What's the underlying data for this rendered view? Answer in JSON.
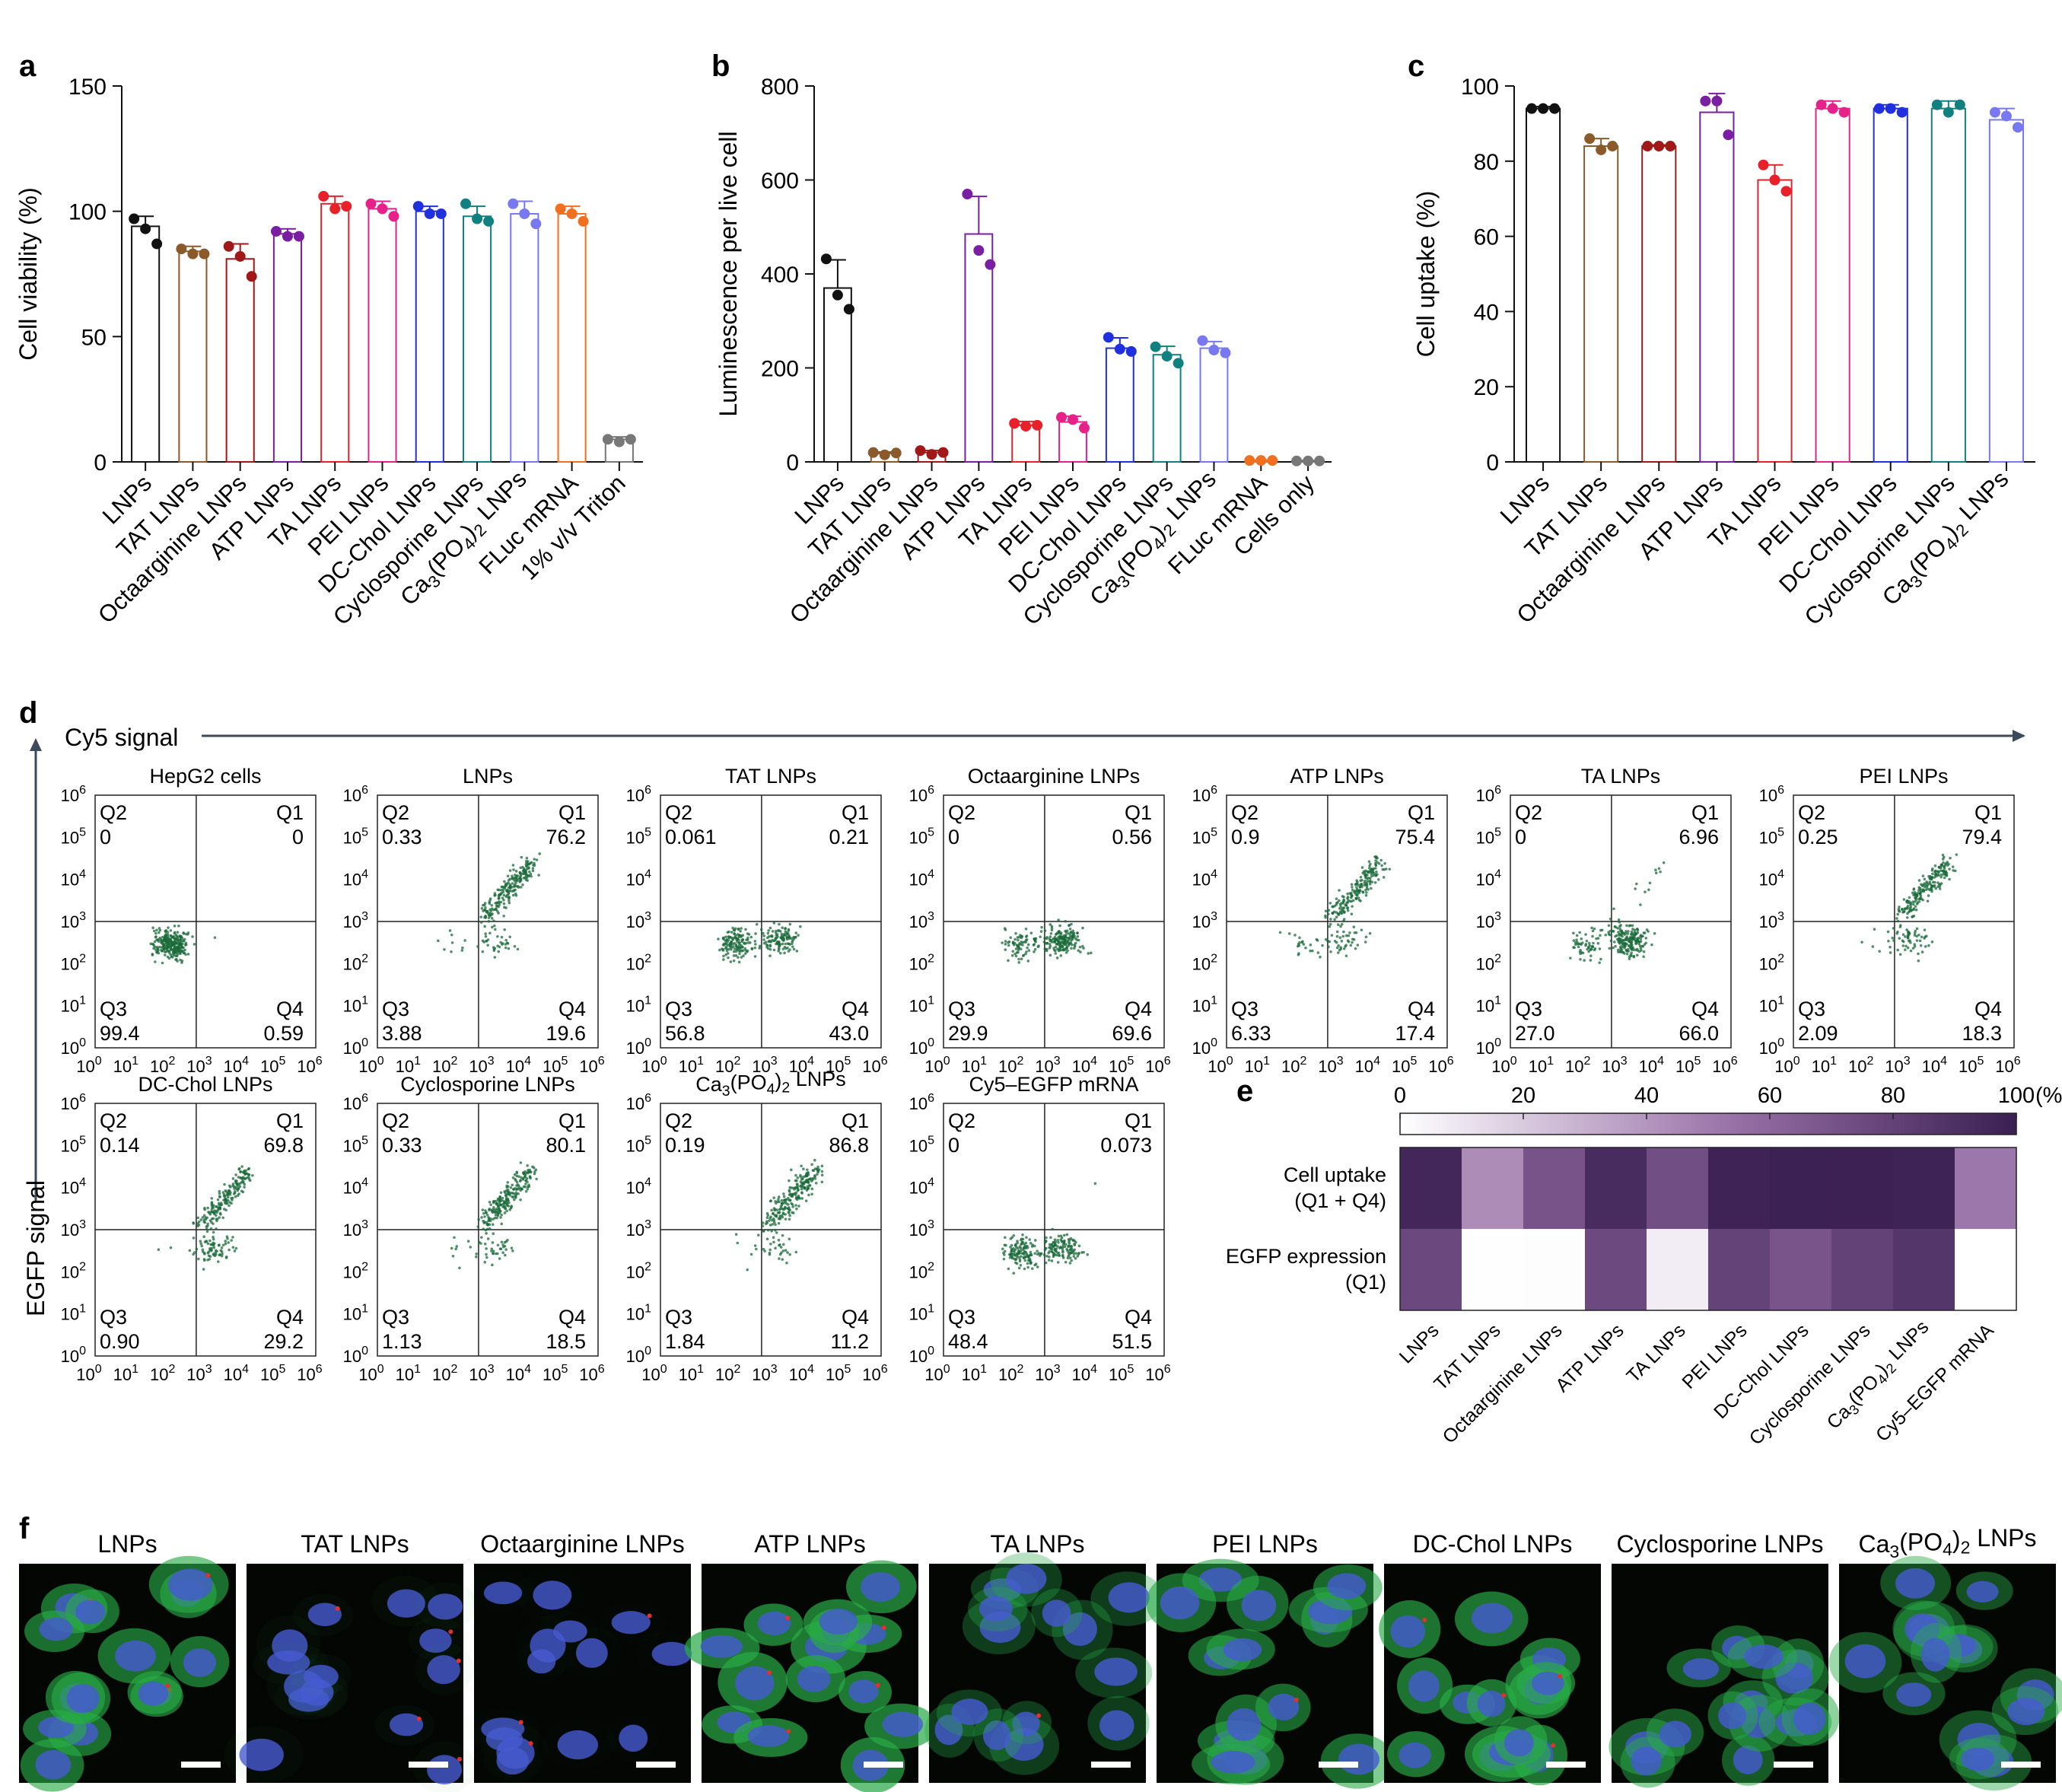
{
  "panel_labels": {
    "a": "a",
    "b": "b",
    "c": "c",
    "d": "d",
    "e": "e",
    "f": "f"
  },
  "chart_data": [
    {
      "panel": "a",
      "type": "bar",
      "ylabel": "Cell viability (%)",
      "ylim": [
        0,
        150
      ],
      "yticks": [
        "0",
        "50",
        "100",
        "150"
      ],
      "categories": [
        "LNPs",
        "TAT LNPs",
        "Octaarginine LNPs",
        "ATP LNPs",
        "TA LNPs",
        "PEI LNPs",
        "DC-Chol LNPs",
        "Cyclosporine LNPs",
        "Ca3(PO4)2 LNPs",
        "FLuc mRNA",
        "1% v/v Triton"
      ],
      "values": [
        94,
        84,
        81,
        91,
        103,
        101,
        100,
        98,
        99,
        99,
        9
      ],
      "errors": [
        4,
        2,
        6,
        2,
        3,
        3,
        2,
        4,
        5,
        3,
        1
      ],
      "points": [
        [
          97,
          93,
          87
        ],
        [
          85,
          83,
          83
        ],
        [
          86,
          82,
          74
        ],
        [
          92,
          90,
          90
        ],
        [
          106,
          101,
          102
        ],
        [
          103,
          101,
          98
        ],
        [
          102,
          99,
          99
        ],
        [
          103,
          97,
          96
        ],
        [
          103,
          99,
          95
        ],
        [
          101,
          99,
          96
        ],
        [
          9,
          8,
          9
        ]
      ],
      "colors": [
        "#111111",
        "#8B5A2B",
        "#A01818",
        "#7A1FA2",
        "#E8202A",
        "#E8208A",
        "#2030E0",
        "#108080",
        "#7878F0",
        "#F07020",
        "#777777"
      ]
    },
    {
      "panel": "b",
      "type": "bar",
      "ylabel": "Luminescence per live cell",
      "ylim": [
        0,
        800
      ],
      "yticks": [
        "0",
        "200",
        "400",
        "600",
        "800"
      ],
      "categories": [
        "LNPs",
        "TAT LNPs",
        "Octaarginine LNPs",
        "ATP LNPs",
        "TA LNPs",
        "PEI LNPs",
        "DC-Chol LNPs",
        "Cyclosporine LNPs",
        "Ca3(PO4)2 LNPs",
        "FLuc mRNA",
        "Cells only"
      ],
      "values": [
        370,
        18,
        20,
        485,
        78,
        85,
        242,
        228,
        242,
        3,
        2
      ],
      "errors": [
        60,
        3,
        4,
        80,
        8,
        12,
        22,
        18,
        14,
        1,
        1
      ],
      "points": [
        [
          432,
          355,
          325
        ],
        [
          20,
          15,
          19
        ],
        [
          24,
          16,
          20
        ],
        [
          570,
          450,
          420
        ],
        [
          82,
          76,
          78
        ],
        [
          95,
          90,
          72
        ],
        [
          265,
          240,
          235
        ],
        [
          245,
          225,
          210
        ],
        [
          258,
          238,
          232
        ],
        [
          3,
          3,
          3
        ],
        [
          2,
          2,
          2
        ]
      ],
      "colors": [
        "#111111",
        "#8B5A2B",
        "#A01818",
        "#7A1FA2",
        "#E8202A",
        "#E8208A",
        "#2030E0",
        "#108080",
        "#7878F0",
        "#F07020",
        "#777777"
      ]
    },
    {
      "panel": "c",
      "type": "bar",
      "ylabel": "Cell uptake (%)",
      "ylim": [
        0,
        100
      ],
      "yticks": [
        "0",
        "20",
        "40",
        "60",
        "80",
        "100"
      ],
      "categories": [
        "LNPs",
        "TAT LNPs",
        "Octaarginine LNPs",
        "ATP LNPs",
        "TA LNPs",
        "PEI LNPs",
        "DC-Chol LNPs",
        "Cyclosporine LNPs",
        "Ca3(PO4)2 LNPs"
      ],
      "values": [
        94,
        84,
        84,
        93,
        75,
        94,
        94,
        94,
        91
      ],
      "errors": [
        0.5,
        2,
        0.3,
        5,
        4,
        2,
        1,
        2,
        3
      ],
      "points": [
        [
          94,
          94,
          94
        ],
        [
          86,
          83,
          84
        ],
        [
          84,
          84,
          84
        ],
        [
          96,
          96,
          87
        ],
        [
          79,
          75,
          72
        ],
        [
          95,
          94,
          93
        ],
        [
          94,
          94,
          93
        ],
        [
          95,
          93,
          95
        ],
        [
          93,
          92,
          89
        ]
      ],
      "colors": [
        "#111111",
        "#8B5A2B",
        "#A01818",
        "#7A1FA2",
        "#E8202A",
        "#E8208A",
        "#2030E0",
        "#108080",
        "#7878F0"
      ]
    },
    {
      "panel": "e",
      "type": "heatmap",
      "colorbar_ticks": [
        "0",
        "20",
        "40",
        "60",
        "80",
        "100"
      ],
      "colorbar_unit": "(%)",
      "rows": [
        "Cell uptake (Q1 + Q4)",
        "EGFP expression (Q1)"
      ],
      "columns": [
        "LNPs",
        "TAT LNPs",
        "Octaarginine LNPs",
        "ATP LNPs",
        "TA LNPs",
        "PEI LNPs",
        "DC-Chol LNPs",
        "Cyclosporine LNPs",
        "Ca3(PO4)2 LNPs",
        "Cy5–EGFP mRNA"
      ],
      "values": [
        [
          95.8,
          43.2,
          70.2,
          92.8,
          73.1,
          97.7,
          99.0,
          98.6,
          98.0,
          51.6
        ],
        [
          76.2,
          0.2,
          0.6,
          75.4,
          7.0,
          79.4,
          69.8,
          80.1,
          86.8,
          0.1
        ]
      ]
    }
  ],
  "flow": {
    "x_axis_title": "Cy5 signal",
    "y_axis_title": "EGFP signal",
    "tick_base": "10",
    "exponents": [
      "0",
      "1",
      "2",
      "3",
      "4",
      "5",
      "6"
    ],
    "plots": [
      {
        "title": "HepG2 cells",
        "Q2": "0",
        "Q1": "0",
        "Q3": "99.4",
        "Q4": "0.59"
      },
      {
        "title": "LNPs",
        "Q2": "0.33",
        "Q1": "76.2",
        "Q3": "3.88",
        "Q4": "19.6"
      },
      {
        "title": "TAT LNPs",
        "Q2": "0.061",
        "Q1": "0.21",
        "Q3": "56.8",
        "Q4": "43.0"
      },
      {
        "title": "Octaarginine LNPs",
        "Q2": "0",
        "Q1": "0.56",
        "Q3": "29.9",
        "Q4": "69.6"
      },
      {
        "title": "ATP LNPs",
        "Q2": "0.9",
        "Q1": "75.4",
        "Q3": "6.33",
        "Q4": "17.4"
      },
      {
        "title": "TA LNPs",
        "Q2": "0",
        "Q1": "6.96",
        "Q3": "27.0",
        "Q4": "66.0"
      },
      {
        "title": "PEI LNPs",
        "Q2": "0.25",
        "Q1": "79.4",
        "Q3": "2.09",
        "Q4": "18.3"
      },
      {
        "title": "DC-Chol LNPs",
        "Q2": "0.14",
        "Q1": "69.8",
        "Q3": "0.90",
        "Q4": "29.2"
      },
      {
        "title": "Cyclosporine LNPs",
        "Q2": "0.33",
        "Q1": "80.1",
        "Q3": "1.13",
        "Q4": "18.5"
      },
      {
        "title": "Ca3(PO4)2 LNPs",
        "Q2": "0.19",
        "Q1": "86.8",
        "Q3": "1.84",
        "Q4": "11.2"
      },
      {
        "title": "Cy5–EGFP mRNA",
        "Q2": "0",
        "Q1": "0.073",
        "Q3": "48.4",
        "Q4": "51.5"
      }
    ]
  },
  "micrographs": {
    "titles": [
      "LNPs",
      "TAT LNPs",
      "Octaarginine LNPs",
      "ATP LNPs",
      "TA LNPs",
      "PEI LNPs",
      "DC-Chol LNPs",
      "Cyclosporine LNPs",
      "Ca3(PO4)2 LNPs"
    ],
    "green_level": [
      0.85,
      0.05,
      0.02,
      0.95,
      0.45,
      0.8,
      0.9,
      0.7,
      0.6
    ],
    "red_level": [
      0.15,
      0.35,
      0.3,
      0.3,
      0.05,
      0.05,
      0.2,
      0.05,
      0.05
    ]
  },
  "colors": {
    "axis": "#111111",
    "heat_low": "#ffffff",
    "heat_high": "#3a1f52",
    "flow_dot": "#1a6a3a",
    "flow_axis_arrow": "#3c4a5c"
  }
}
